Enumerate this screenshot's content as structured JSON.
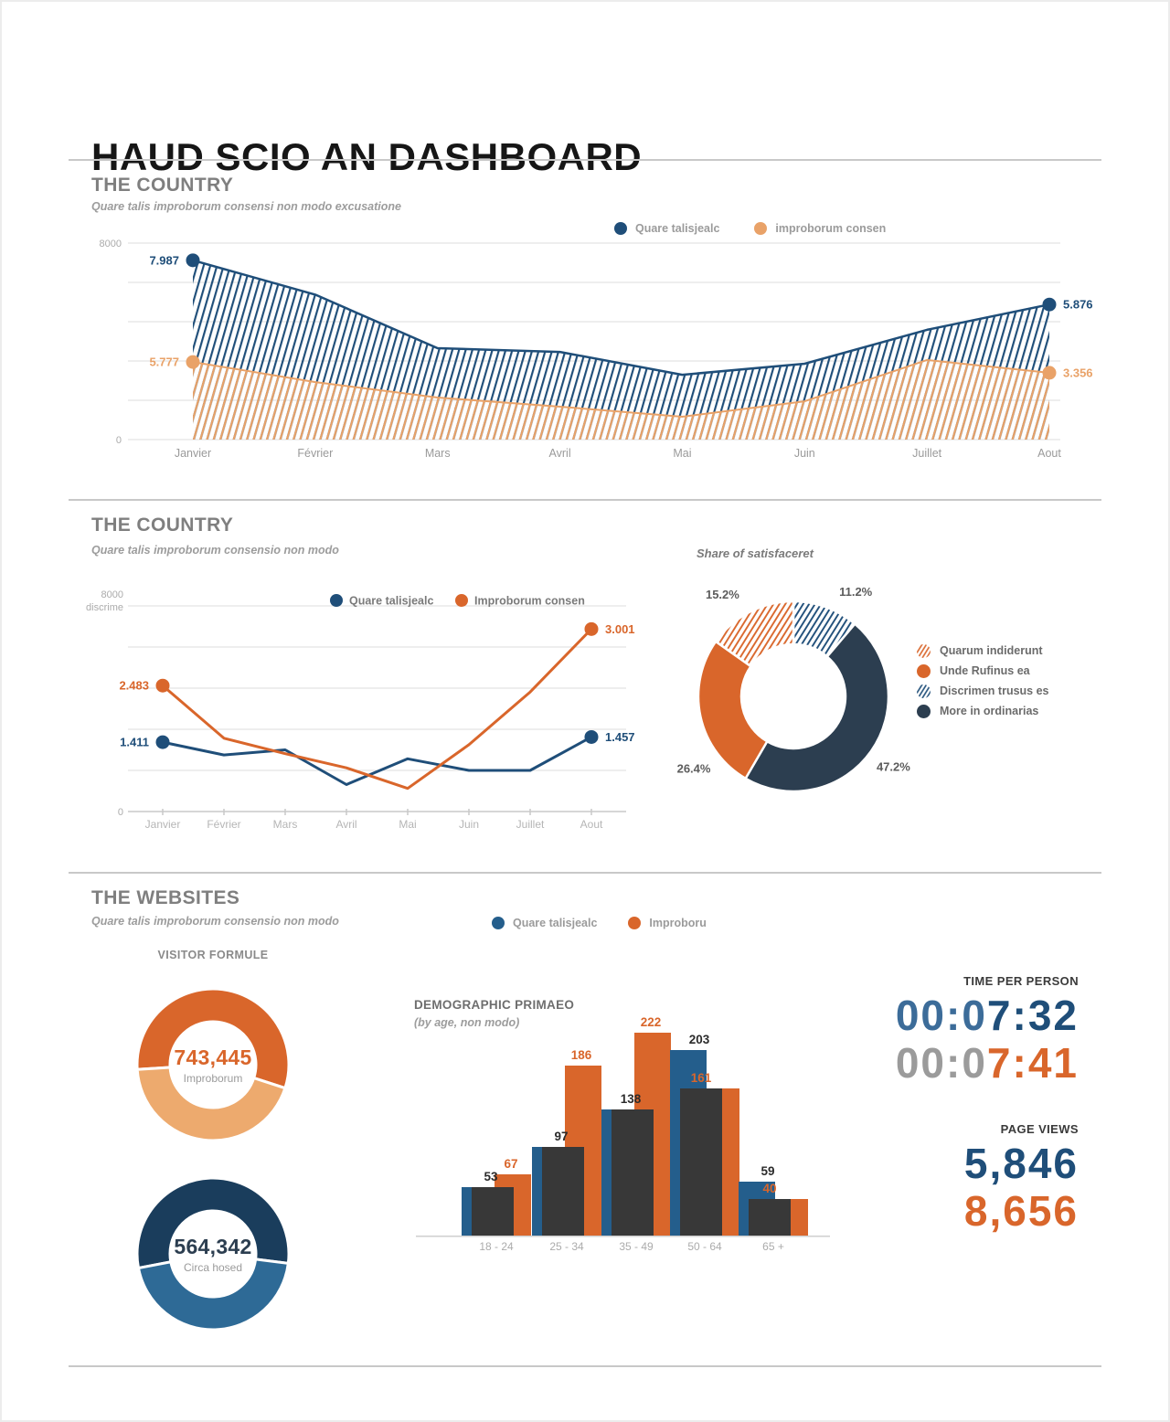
{
  "title": "HAUD SCIO AN DASHBOARD",
  "section1": {
    "heading": "THE COUNTRY",
    "subtitle": "Quare talis improborum consensi non modo excusatione",
    "legend": [
      {
        "label": "Quare talisjealc",
        "color": "#1F4E79"
      },
      {
        "label": "improborum consen",
        "color": "#E9A268"
      }
    ]
  },
  "section2": {
    "heading": "THE COUNTRY",
    "subtitle": "Quare talis improborum consensio non modo",
    "share_title": "Share of satisfaceret"
  },
  "section3": {
    "heading": "THE WEBSITES",
    "subtitle": "Quare talis improborum consensio non modo",
    "legend": [
      {
        "label": "Quare talisjealc",
        "color": "#245E8C"
      },
      {
        "label": "Improboru",
        "color": "#D9662B"
      }
    ],
    "visitor_heading": "VISITOR FORMULE",
    "demographic_title": "DEMOGRAPHIC PRIMAEO",
    "demographic_subtitle": "(by age, non modo)"
  },
  "stats": {
    "time_heading": "TIME PER PERSON",
    "times": [
      {
        "prefix": "00:0",
        "suffix": "7:32",
        "prefix_color": "#3C6C99",
        "suffix_color": "#1F4E79"
      },
      {
        "prefix": "00:0",
        "suffix": "7:41",
        "prefix_color": "#9B9B9B",
        "suffix_color": "#D9662B"
      }
    ],
    "pageviews_heading": "PAGE VIEWS",
    "pageviews": [
      {
        "value": "5,846",
        "color": "#1F4E79"
      },
      {
        "value": "8,656",
        "color": "#D9662B"
      }
    ]
  },
  "chart_data": [
    {
      "id": "country-area",
      "type": "area",
      "title": "THE COUNTRY",
      "subtitle": "Quare talis improborum consensi non modo excusatione",
      "x": [
        "Janvier",
        "Février",
        "Mars",
        "Avril",
        "Mai",
        "Juin",
        "Juillet",
        "Aout"
      ],
      "ylim": [
        0,
        8000
      ],
      "y_ticks": [
        "8000",
        "0"
      ],
      "grid": true,
      "style": "hatched-area",
      "series": [
        {
          "name": "Quare talisjealc",
          "color": "#1F4E79",
          "values": [
            7300,
            5900,
            3720,
            3570,
            2640,
            3090,
            4470,
            5500
          ],
          "start_label": "7.987",
          "end_label": "5.876"
        },
        {
          "name": "improborum consen",
          "color": "#E9A268",
          "values": [
            3160,
            2340,
            1710,
            1340,
            930,
            1560,
            3240,
            2720
          ],
          "start_label": "5.777",
          "end_label": "3.356"
        }
      ]
    },
    {
      "id": "country-line",
      "type": "line",
      "title": "THE COUNTRY",
      "subtitle": "Quare talis improborum consensio non modo",
      "x": [
        "Janvier",
        "Février",
        "Mars",
        "Avril",
        "Mai",
        "Juin",
        "Juillet",
        "Aout"
      ],
      "ylim": [
        0,
        8000
      ],
      "y_ticks": [
        "8000",
        "discrime",
        "0"
      ],
      "grid": true,
      "series": [
        {
          "name": "Quare talisjealc",
          "color": "#1F4E79",
          "values": [
            2700,
            2200,
            2400,
            1050,
            2050,
            1600,
            1600,
            2900
          ],
          "start_label": "1.411",
          "end_label": "1.457"
        },
        {
          "name": "Improborum consen",
          "color": "#D9662B",
          "values": [
            4900,
            2850,
            2250,
            1700,
            900,
            2600,
            4650,
            7100
          ],
          "start_label": "2.483",
          "end_label": "3.001"
        }
      ]
    },
    {
      "id": "share-donut",
      "type": "pie",
      "title": "Share of satisfaceret",
      "legend_position": "right",
      "slices": [
        {
          "label": "Quarum indiderunt",
          "value": 15.2,
          "pct_label": "15.2%",
          "fill": "hatch-orange"
        },
        {
          "label": "Unde Rufinus ea",
          "value": 26.4,
          "pct_label": "26.4%",
          "fill": "#D9662B"
        },
        {
          "label": "Discrimen trusus es",
          "value": 11.2,
          "pct_label": "11.2%",
          "fill": "hatch-blue"
        },
        {
          "label": "More in ordinarias",
          "value": 47.2,
          "pct_label": "47.2%",
          "fill": "#2C3E50"
        }
      ],
      "draw_order": [
        2,
        3,
        1,
        0
      ]
    },
    {
      "id": "visitor-donut-1",
      "type": "pie",
      "center_value": "743,445",
      "center_label": "Improborum",
      "rotation": 0.74,
      "slices": [
        {
          "value": 56,
          "color": "#D9662B"
        },
        {
          "value": 44,
          "color": "#EDAA6E"
        }
      ]
    },
    {
      "id": "visitor-donut-2",
      "type": "pie",
      "center_value": "564,342",
      "center_label": "Circa hosed",
      "rotation": 0.72,
      "slices": [
        {
          "value": 55,
          "color": "#1A3D5C"
        },
        {
          "value": 45,
          "color": "#2E6A96"
        }
      ]
    },
    {
      "id": "demographic-bars",
      "type": "bar",
      "title": "DEMOGRAPHIC PRIMAEO",
      "subtitle": "(by age, non modo)",
      "categories": [
        "18 - 24",
        "25 - 34",
        "35 - 49",
        "50 - 64",
        "65 +"
      ],
      "overlay_color": "#383838",
      "series": [
        {
          "name": "Quare talisjealc",
          "color": "#245E8C",
          "values": [
            53,
            97,
            138,
            203,
            59
          ],
          "label_color": "#2B2B2B"
        },
        {
          "name": "Improboru",
          "color": "#D9662B",
          "values": [
            67,
            186,
            222,
            161,
            40
          ],
          "label_color": "#D9662B"
        }
      ]
    }
  ]
}
